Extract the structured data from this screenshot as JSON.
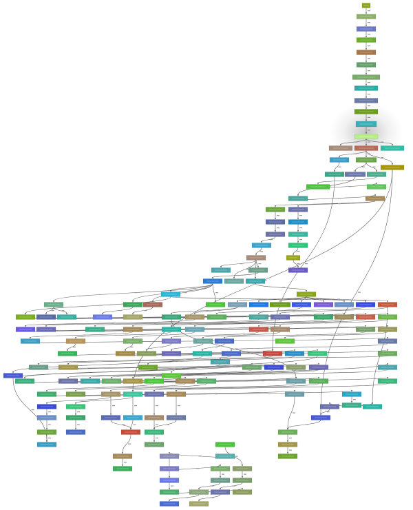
{
  "diagram": {
    "type": "flow graph",
    "nodes": [
      {
        "id": "n0",
        "color": "#8aa61a"
      },
      {
        "id": "n1",
        "color": "#8fb06a"
      },
      {
        "id": "n2",
        "color": "#6b78c8"
      },
      {
        "id": "n3",
        "color": "#6aae2a"
      },
      {
        "id": "n4",
        "color": "#a8744a"
      },
      {
        "id": "n5",
        "color": "#62a06a"
      },
      {
        "id": "n6",
        "color": "#7aaa6a"
      },
      {
        "id": "n7",
        "color": "#2aaea6"
      },
      {
        "id": "n8",
        "color": "#6a7aa6"
      },
      {
        "id": "n9",
        "color": "#6a9e1a"
      },
      {
        "id": "n10",
        "color": "#3aaeb6"
      },
      {
        "id": "n11",
        "color": "#b6ee8a"
      },
      {
        "id": "n12",
        "color": "#a68a7a"
      },
      {
        "id": "n13",
        "color": "#b86a5a"
      },
      {
        "id": "n14",
        "color": "#2ebea6"
      },
      {
        "id": "n15",
        "color": "#3a9ec6"
      },
      {
        "id": "n16",
        "color": "#6aa64a"
      },
      {
        "id": "n17",
        "color": "#a6960a"
      },
      {
        "id": "n18",
        "color": "#3aa68a"
      },
      {
        "id": "n19",
        "color": "#6a7aae"
      },
      {
        "id": "n20",
        "color": "#4aae8a"
      },
      {
        "id": "n21",
        "color": "#4ac63a"
      },
      {
        "id": "n22",
        "color": "#5ec65a"
      },
      {
        "id": "n23",
        "color": "#4aa69e"
      },
      {
        "id": "n24",
        "color": "#a68a5a"
      },
      {
        "id": "n25",
        "color": "#6aa63a"
      },
      {
        "id": "n26",
        "color": "#6a72ae"
      },
      {
        "id": "n27",
        "color": "#5a6aa6"
      },
      {
        "id": "n28",
        "color": "#1a8ec6"
      },
      {
        "id": "n29",
        "color": "#6a72a6"
      },
      {
        "id": "n30",
        "color": "#3ab69e"
      },
      {
        "id": "n31",
        "color": "#3aa6ce"
      },
      {
        "id": "n32",
        "color": "#2ac67a"
      },
      {
        "id": "n33",
        "color": "#a68a7a"
      },
      {
        "id": "n34",
        "color": "#9aa61a"
      },
      {
        "id": "n35",
        "color": "#6a9e8a"
      },
      {
        "id": "n36",
        "color": "#6a5ac6"
      },
      {
        "id": "n37",
        "color": "#4aa6ae"
      },
      {
        "id": "n38",
        "color": "#6aa69e"
      },
      {
        "id": "n39",
        "color": "#3aa6ae"
      },
      {
        "id": "n40",
        "color": "#8aa61a"
      },
      {
        "id": "n41",
        "color": "#2a7ad6"
      },
      {
        "id": "n42",
        "color": "#2ab6d6"
      },
      {
        "id": "n43",
        "color": "#6aae8a"
      },
      {
        "id": "n44",
        "color": "#3aa65a"
      },
      {
        "id": "n45",
        "color": "#a66a5a"
      },
      {
        "id": "n46",
        "color": "#4ac63a"
      },
      {
        "id": "n47",
        "color": "#7a9eb6"
      },
      {
        "id": "n48",
        "color": "#1a7ae6"
      },
      {
        "id": "n49",
        "color": "#6a9e1a"
      },
      {
        "id": "n50",
        "color": "#3a5ae6"
      },
      {
        "id": "n51",
        "color": "#7a5ad6"
      },
      {
        "id": "n52",
        "color": "#6a8ec6"
      },
      {
        "id": "n53",
        "color": "#3a4ae6"
      },
      {
        "id": "n54",
        "color": "#c65a3a"
      },
      {
        "id": "n55",
        "color": "#7aae1a"
      },
      {
        "id": "n56",
        "color": "#5a6aa6"
      },
      {
        "id": "n57",
        "color": "#3aae9e"
      },
      {
        "id": "n58",
        "color": "#6a7ae6"
      },
      {
        "id": "n59",
        "color": "#a6a66a"
      },
      {
        "id": "n60",
        "color": "#3aa67a"
      },
      {
        "id": "n61",
        "color": "#a6966a"
      },
      {
        "id": "n62",
        "color": "#5aae5a"
      },
      {
        "id": "n63",
        "color": "#4aa69e"
      },
      {
        "id": "n64",
        "color": "#6a72ae"
      },
      {
        "id": "n65",
        "color": "#3aa66a"
      },
      {
        "id": "n66",
        "color": "#9a8a5a"
      },
      {
        "id": "n67",
        "color": "#c6604a"
      },
      {
        "id": "n68",
        "color": "#6ab64a"
      },
      {
        "id": "n69",
        "color": "#6a5ae6"
      },
      {
        "id": "n70",
        "color": "#6a6ab6"
      },
      {
        "id": "n71",
        "color": "#3aae8a"
      },
      {
        "id": "n72",
        "color": "#a68a5a"
      },
      {
        "id": "n73",
        "color": "#2ab6a6"
      },
      {
        "id": "n74",
        "color": "#6aa6b6"
      },
      {
        "id": "n75",
        "color": "#c65a4a"
      },
      {
        "id": "n76",
        "color": "#a68a6a"
      },
      {
        "id": "n77",
        "color": "#7a9e6a"
      },
      {
        "id": "n78",
        "color": "#9a9a5a"
      },
      {
        "id": "n79",
        "color": "#3a9ec6"
      },
      {
        "id": "n80",
        "color": "#b6965a"
      },
      {
        "id": "n81",
        "color": "#7aae6a"
      },
      {
        "id": "n82",
        "color": "#7a7ac6"
      },
      {
        "id": "n83",
        "color": "#6aa69e"
      },
      {
        "id": "n84",
        "color": "#4a6ac6"
      },
      {
        "id": "n85",
        "color": "#5ec63a"
      },
      {
        "id": "n86",
        "color": "#6a7aa6"
      },
      {
        "id": "n87",
        "color": "#3ab65a"
      },
      {
        "id": "n88",
        "color": "#a68a4a"
      },
      {
        "id": "n89",
        "color": "#8a9e5a"
      },
      {
        "id": "n90",
        "color": "#6a6ab6"
      },
      {
        "id": "n91",
        "color": "#2ab6a6"
      },
      {
        "id": "n92",
        "color": "#4a6ac6"
      },
      {
        "id": "n93",
        "color": "#c64a3a"
      },
      {
        "id": "n94",
        "color": "#2a8ec6"
      },
      {
        "id": "n95",
        "color": "#3ac67a"
      },
      {
        "id": "n96",
        "color": "#6aae5a"
      },
      {
        "id": "n97",
        "color": "#4a5ad6"
      },
      {
        "id": "n98",
        "color": "#6a9e8a"
      },
      {
        "id": "n99",
        "color": "#a6964a"
      },
      {
        "id": "n100",
        "color": "#6aa62a"
      },
      {
        "id": "n101",
        "color": "#5ec63a"
      },
      {
        "id": "n102",
        "color": "#4aa6ae"
      },
      {
        "id": "n103",
        "color": "#6aa66a"
      },
      {
        "id": "n104",
        "color": "#3a4ad6"
      },
      {
        "id": "n105",
        "color": "#8a9e6a"
      },
      {
        "id": "n106",
        "color": "#6a6ab6"
      },
      {
        "id": "n107",
        "color": "#4aa6ae"
      },
      {
        "id": "n108",
        "color": "#3aae7a"
      },
      {
        "id": "n109",
        "color": "#6a72a6"
      },
      {
        "id": "n110",
        "color": "#3aa6a6"
      },
      {
        "id": "n111",
        "color": "#6aae6a"
      },
      {
        "id": "n112",
        "color": "#a6964a"
      },
      {
        "id": "n113",
        "color": "#4ac63a"
      },
      {
        "id": "n114",
        "color": "#a68a5a"
      },
      {
        "id": "n115",
        "color": "#5aae6a"
      },
      {
        "id": "n116",
        "color": "#6a9ea6"
      },
      {
        "id": "n117",
        "color": "#5aae5a"
      },
      {
        "id": "n118",
        "color": "#3ab67a"
      },
      {
        "id": "n119",
        "color": "#3aae6a"
      },
      {
        "id": "n120",
        "color": "#7a9e4a"
      },
      {
        "id": "n121",
        "color": "#a6966a"
      },
      {
        "id": "n122",
        "color": "#3ac69e"
      },
      {
        "id": "n123",
        "color": "#6a72ae"
      },
      {
        "id": "n124",
        "color": "#a68a5a"
      },
      {
        "id": "n125",
        "color": "#6a9ea6"
      },
      {
        "id": "n126",
        "color": "#2aa6c6"
      },
      {
        "id": "n127",
        "color": "#3a4ad6"
      },
      {
        "id": "n128",
        "color": "#3ac67a"
      }
    ],
    "edges": [
      [
        "n0",
        "n1"
      ],
      [
        "n1",
        "n2"
      ],
      [
        "n2",
        "n3"
      ],
      [
        "n3",
        "n4"
      ],
      [
        "n4",
        "n5"
      ],
      [
        "n5",
        "n6"
      ],
      [
        "n6",
        "n7"
      ],
      [
        "n7",
        "n8"
      ],
      [
        "n8",
        "n9"
      ],
      [
        "n9",
        "n10"
      ],
      [
        "n10",
        "n11"
      ],
      [
        "n11",
        "n12"
      ],
      [
        "n11",
        "n13"
      ],
      [
        "n11",
        "n14"
      ],
      [
        "n13",
        "n15"
      ],
      [
        "n13",
        "n16"
      ],
      [
        "n13",
        "n17"
      ],
      [
        "n15",
        "n18"
      ],
      [
        "n16",
        "n19"
      ],
      [
        "n16",
        "n20"
      ],
      [
        "n20",
        "n21"
      ],
      [
        "n21",
        "n22"
      ],
      [
        "n19",
        "n23"
      ],
      [
        "n23",
        "n24"
      ],
      [
        "n24",
        "n25"
      ],
      [
        "n24",
        "n26"
      ],
      [
        "n25",
        "n27"
      ],
      [
        "n27",
        "n29"
      ],
      [
        "n26",
        "n28"
      ],
      [
        "n28",
        "n30"
      ],
      [
        "n30",
        "n32"
      ],
      [
        "n32",
        "n34"
      ],
      [
        "n34",
        "n36"
      ],
      [
        "n29",
        "n31"
      ],
      [
        "n31",
        "n33"
      ],
      [
        "n33",
        "n35"
      ],
      [
        "n33",
        "n37"
      ],
      [
        "n33",
        "n38"
      ],
      [
        "n33",
        "n39"
      ],
      [
        "n39",
        "n40"
      ],
      [
        "n35",
        "n41"
      ],
      [
        "n41",
        "n42"
      ],
      [
        "n41",
        "n43"
      ],
      [
        "n41",
        "n44"
      ],
      [
        "n41",
        "n45"
      ],
      [
        "n41",
        "n46"
      ],
      [
        "n40",
        "n47"
      ],
      [
        "n40",
        "n48"
      ],
      [
        "n40",
        "n49"
      ],
      [
        "n40",
        "n50"
      ],
      [
        "n40",
        "n51"
      ],
      [
        "n40",
        "n52"
      ],
      [
        "n40",
        "n53"
      ],
      [
        "n42",
        "n54"
      ],
      [
        "n42",
        "n55"
      ],
      [
        "n43",
        "n56"
      ],
      [
        "n43",
        "n57"
      ],
      [
        "n44",
        "n58"
      ],
      [
        "n45",
        "n59"
      ],
      [
        "n47",
        "n60"
      ],
      [
        "n47",
        "n61"
      ],
      [
        "n53",
        "n62"
      ],
      [
        "n50",
        "n63"
      ],
      [
        "n54",
        "n64"
      ],
      [
        "n55",
        "n65"
      ],
      [
        "n56",
        "n66"
      ],
      [
        "n57",
        "n67"
      ],
      [
        "n58",
        "n68"
      ],
      [
        "n61",
        "n69"
      ],
      [
        "n63",
        "n70"
      ],
      [
        "n64",
        "n71"
      ],
      [
        "n65",
        "n72"
      ],
      [
        "n66",
        "n73"
      ],
      [
        "n67",
        "n74"
      ],
      [
        "n68",
        "n75"
      ],
      [
        "n69",
        "n76"
      ],
      [
        "n70",
        "n77"
      ],
      [
        "n71",
        "n78"
      ],
      [
        "n72",
        "n79"
      ],
      [
        "n73",
        "n80"
      ],
      [
        "n74",
        "n81"
      ],
      [
        "n75",
        "n82"
      ],
      [
        "n76",
        "n83"
      ],
      [
        "n77",
        "n84"
      ],
      [
        "n78",
        "n85"
      ],
      [
        "n79",
        "n86"
      ],
      [
        "n80",
        "n87"
      ],
      [
        "n81",
        "n88"
      ],
      [
        "n82",
        "n89"
      ],
      [
        "n83",
        "n90"
      ],
      [
        "n84",
        "n91"
      ],
      [
        "n86",
        "n92"
      ],
      [
        "n87",
        "n93"
      ],
      [
        "n88",
        "n94"
      ],
      [
        "n89",
        "n95"
      ],
      [
        "n90",
        "n96"
      ],
      [
        "n91",
        "n97"
      ],
      [
        "n92",
        "n98"
      ],
      [
        "n93",
        "n99"
      ],
      [
        "n94",
        "n100"
      ],
      [
        "n95",
        "n101"
      ],
      [
        "n96",
        "n102"
      ],
      [
        "n97",
        "n103"
      ],
      [
        "n98",
        "n104"
      ],
      [
        "n99",
        "n105"
      ],
      [
        "n100",
        "n106"
      ],
      [
        "n101",
        "n107"
      ],
      [
        "n102",
        "n108"
      ],
      [
        "n103",
        "n109"
      ],
      [
        "n104",
        "n110"
      ],
      [
        "n105",
        "n111"
      ],
      [
        "n106",
        "n112"
      ],
      [
        "n107",
        "n113"
      ],
      [
        "n108",
        "n114"
      ],
      [
        "n109",
        "n115"
      ],
      [
        "n110",
        "n116"
      ],
      [
        "n111",
        "n117"
      ],
      [
        "n112",
        "n118"
      ],
      [
        "n113",
        "n119"
      ],
      [
        "n114",
        "n120"
      ],
      [
        "n115",
        "n121"
      ],
      [
        "n116",
        "n122"
      ],
      [
        "n117",
        "n123"
      ],
      [
        "n118",
        "n124"
      ],
      [
        "n119",
        "n125"
      ],
      [
        "n120",
        "n126"
      ],
      [
        "n121",
        "n127"
      ],
      [
        "n122",
        "n128"
      ],
      [
        "n17",
        "n122"
      ],
      [
        "n18",
        "n93"
      ],
      [
        "n60",
        "n116"
      ]
    ]
  }
}
